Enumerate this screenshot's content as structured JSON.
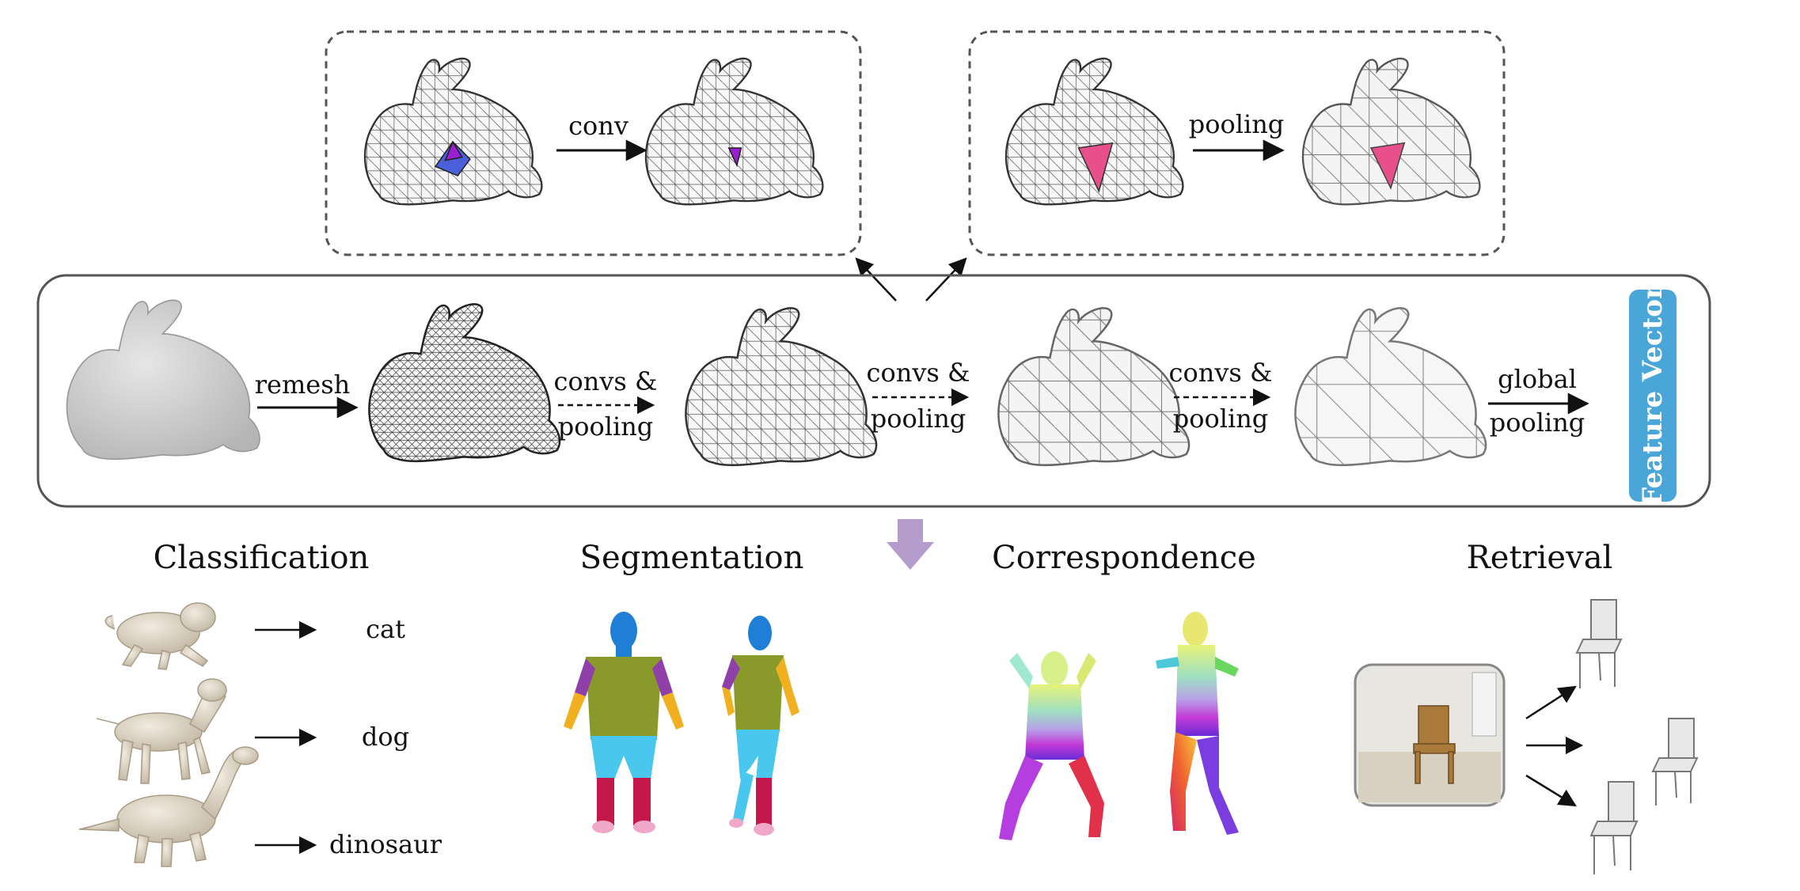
{
  "detail_boxes": {
    "conv": {
      "op_label": "conv"
    },
    "pooling": {
      "op_label": "pooling"
    }
  },
  "pipeline": {
    "steps": [
      {
        "op_lines": [
          "remesh"
        ]
      },
      {
        "op_lines": [
          "convs &",
          "pooling"
        ]
      },
      {
        "op_lines": [
          "convs &",
          "pooling"
        ]
      },
      {
        "op_lines": [
          "convs &",
          "pooling"
        ]
      },
      {
        "op_lines": [
          "global",
          "pooling"
        ]
      }
    ],
    "feature_vector_label": "Feature Vector",
    "feature_vector_color": "#4aa6d9",
    "down_arrow_color": "#b49ccc"
  },
  "tasks": {
    "classification": {
      "title": "Classification",
      "outputs": [
        "cat",
        "dog",
        "dinosaur"
      ]
    },
    "segmentation": {
      "title": "Segmentation"
    },
    "correspondence": {
      "title": "Correspondence"
    },
    "retrieval": {
      "title": "Retrieval"
    }
  },
  "colors": {
    "highlight_purple": "#9b1fd1",
    "highlight_blue": "#4a5fd9",
    "highlight_pink": "#e8508c",
    "mesh_fill": "#f2f2f2",
    "mesh_line": "#555555",
    "animal_fill": "#e4dccd",
    "seg_head": "#1f7fd6",
    "seg_torso": "#8a9a2a",
    "seg_arm": "#8e3fa8",
    "seg_forearm": "#f0b020",
    "seg_legs": "#49c7ee",
    "seg_shins": "#c4174a",
    "seg_feet": "#f0a8c8"
  }
}
